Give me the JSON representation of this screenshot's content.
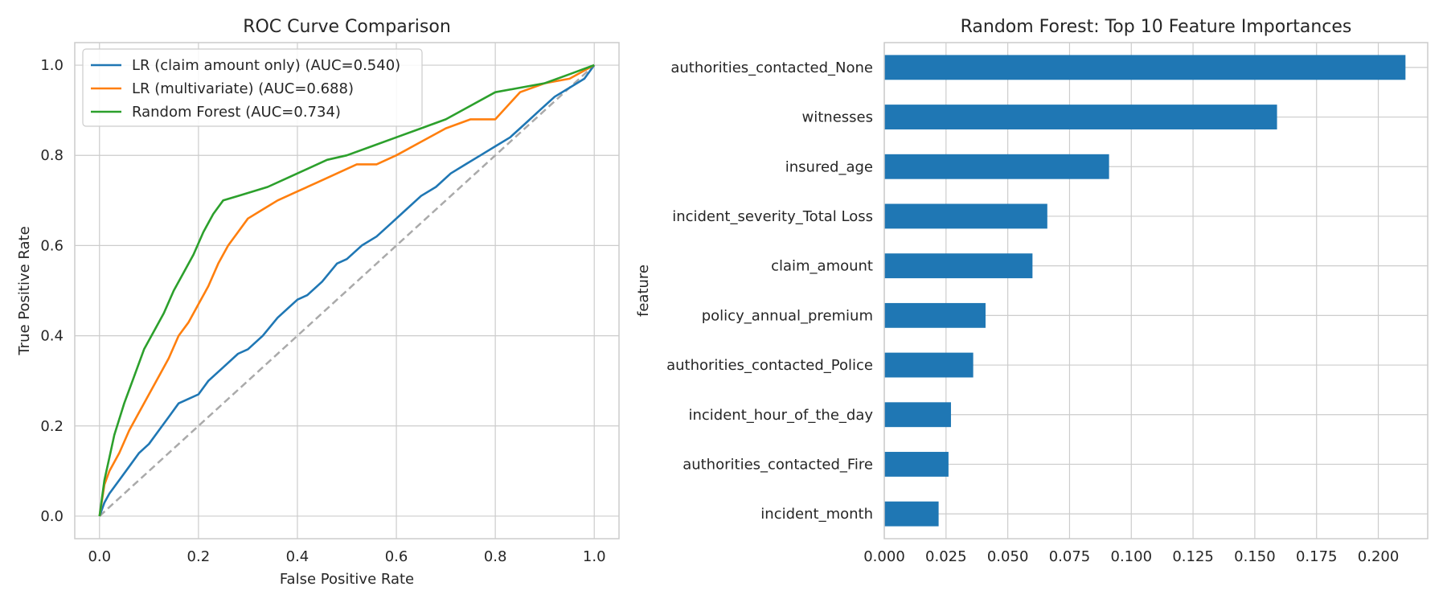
{
  "chart_data": [
    {
      "type": "line",
      "title": "ROC Curve Comparison",
      "xlabel": "False Positive Rate",
      "ylabel": "True Positive Rate",
      "xlim": [
        -0.05,
        1.05
      ],
      "ylim": [
        -0.05,
        1.05
      ],
      "xticks": [
        "0.0",
        "0.2",
        "0.4",
        "0.6",
        "0.8",
        "1.0"
      ],
      "yticks": [
        "0.0",
        "0.2",
        "0.4",
        "0.6",
        "0.8",
        "1.0"
      ],
      "grid": true,
      "legend_position": "upper left",
      "diagonal": {
        "x": [
          0,
          1
        ],
        "y": [
          0,
          1
        ],
        "color": "#aaaaaa",
        "style": "dashed"
      },
      "series": [
        {
          "name": "LR (claim amount only) (AUC=0.540)",
          "color": "#1f77b4",
          "x": [
            0,
            0.01,
            0.02,
            0.04,
            0.06,
            0.08,
            0.1,
            0.12,
            0.14,
            0.16,
            0.18,
            0.2,
            0.22,
            0.25,
            0.28,
            0.3,
            0.33,
            0.36,
            0.39,
            0.4,
            0.42,
            0.45,
            0.48,
            0.5,
            0.53,
            0.56,
            0.59,
            0.62,
            0.65,
            0.68,
            0.71,
            0.74,
            0.77,
            0.8,
            0.83,
            0.86,
            0.89,
            0.92,
            0.95,
            0.98,
            1.0
          ],
          "y": [
            0,
            0.03,
            0.05,
            0.08,
            0.11,
            0.14,
            0.16,
            0.19,
            0.22,
            0.25,
            0.26,
            0.27,
            0.3,
            0.33,
            0.36,
            0.37,
            0.4,
            0.44,
            0.47,
            0.48,
            0.49,
            0.52,
            0.56,
            0.57,
            0.6,
            0.62,
            0.65,
            0.68,
            0.71,
            0.73,
            0.76,
            0.78,
            0.8,
            0.82,
            0.84,
            0.87,
            0.9,
            0.93,
            0.95,
            0.97,
            1.0
          ]
        },
        {
          "name": "LR (multivariate) (AUC=0.688)",
          "color": "#ff7f0e",
          "x": [
            0,
            0.01,
            0.02,
            0.04,
            0.06,
            0.08,
            0.1,
            0.12,
            0.14,
            0.16,
            0.18,
            0.2,
            0.22,
            0.24,
            0.26,
            0.28,
            0.3,
            0.33,
            0.36,
            0.4,
            0.44,
            0.48,
            0.52,
            0.56,
            0.6,
            0.65,
            0.7,
            0.75,
            0.8,
            0.85,
            0.9,
            0.95,
            1.0
          ],
          "y": [
            0,
            0.07,
            0.1,
            0.14,
            0.19,
            0.23,
            0.27,
            0.31,
            0.35,
            0.4,
            0.43,
            0.47,
            0.51,
            0.56,
            0.6,
            0.63,
            0.66,
            0.68,
            0.7,
            0.72,
            0.74,
            0.76,
            0.78,
            0.78,
            0.8,
            0.83,
            0.86,
            0.88,
            0.88,
            0.94,
            0.96,
            0.97,
            1.0
          ]
        },
        {
          "name": "Random Forest (AUC=0.734)",
          "color": "#2ca02c",
          "x": [
            0,
            0.01,
            0.02,
            0.03,
            0.05,
            0.07,
            0.09,
            0.11,
            0.13,
            0.15,
            0.17,
            0.19,
            0.21,
            0.23,
            0.25,
            0.28,
            0.31,
            0.34,
            0.38,
            0.42,
            0.46,
            0.5,
            0.55,
            0.6,
            0.65,
            0.7,
            0.75,
            0.8,
            0.85,
            0.9,
            0.95,
            1.0
          ],
          "y": [
            0,
            0.08,
            0.13,
            0.18,
            0.25,
            0.31,
            0.37,
            0.41,
            0.45,
            0.5,
            0.54,
            0.58,
            0.63,
            0.67,
            0.7,
            0.71,
            0.72,
            0.73,
            0.75,
            0.77,
            0.79,
            0.8,
            0.82,
            0.84,
            0.86,
            0.88,
            0.91,
            0.94,
            0.95,
            0.96,
            0.98,
            1.0
          ]
        }
      ]
    },
    {
      "type": "bar",
      "orientation": "horizontal",
      "title": "Random Forest: Top 10 Feature Importances",
      "xlabel": "",
      "ylabel": "feature",
      "xlim": [
        0,
        0.22
      ],
      "xticks": [
        "0.000",
        "0.025",
        "0.050",
        "0.075",
        "0.100",
        "0.125",
        "0.150",
        "0.175",
        "0.200"
      ],
      "grid": true,
      "color": "#1f77b4",
      "categories": [
        "authorities_contacted_None",
        "witnesses",
        "insured_age",
        "incident_severity_Total Loss",
        "claim_amount",
        "policy_annual_premium",
        "authorities_contacted_Police",
        "incident_hour_of_the_day",
        "authorities_contacted_Fire",
        "incident_month"
      ],
      "values": [
        0.211,
        0.159,
        0.091,
        0.066,
        0.06,
        0.041,
        0.036,
        0.027,
        0.026,
        0.022
      ]
    }
  ]
}
